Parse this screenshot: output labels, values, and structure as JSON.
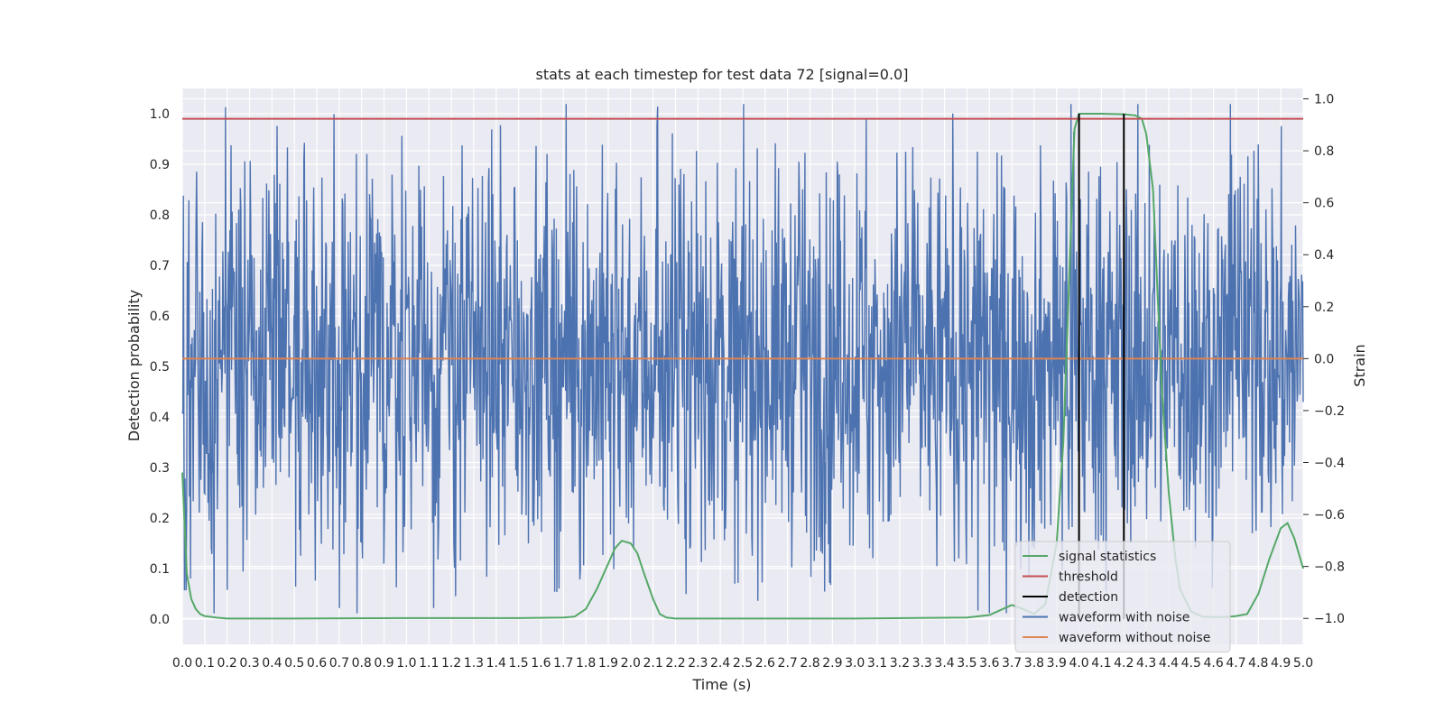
{
  "chart_data": {
    "type": "line",
    "title": "stats at each timestep for test data 72 [signal=0.0]",
    "xlabel": "Time (s)",
    "ylabel": "Detection probability",
    "y2label": "Strain",
    "xlim": [
      0.0,
      5.0
    ],
    "ylim": [
      -0.05,
      1.05
    ],
    "y2lim": [
      -1.1,
      1.04
    ],
    "x_ticks": [
      0.0,
      0.1,
      0.2,
      0.3,
      0.4,
      0.5,
      0.6,
      0.7,
      0.8,
      0.9,
      1.0,
      1.1,
      1.2,
      1.3,
      1.4,
      1.5,
      1.6,
      1.7,
      1.8,
      1.9,
      2.0,
      2.1,
      2.2,
      2.3,
      2.4,
      2.5,
      2.6,
      2.7,
      2.8,
      2.9,
      3.0,
      3.1,
      3.2,
      3.3,
      3.4,
      3.5,
      3.6,
      3.7,
      3.8,
      3.9,
      4.0,
      4.1,
      4.2,
      4.3,
      4.4,
      4.5,
      4.6,
      4.7,
      4.8,
      4.9,
      5.0
    ],
    "x_tick_labels": [
      "0.0",
      "0.1",
      "0.2",
      "0.3",
      "0.4",
      "0.5",
      "0.6",
      "0.7",
      "0.8",
      "0.9",
      "1.0",
      "1.1",
      "1.2",
      "1.3",
      "1.4",
      "1.5",
      "1.6",
      "1.7",
      "1.8",
      "1.9",
      "2.0",
      "2.1",
      "2.2",
      "2.3",
      "2.4",
      "2.5",
      "2.6",
      "2.7",
      "2.8",
      "2.9",
      "3.0",
      "3.1",
      "3.2",
      "3.3",
      "3.4",
      "3.5",
      "3.6",
      "3.7",
      "3.8",
      "3.9",
      "4.0",
      "4.1",
      "4.2",
      "4.3",
      "4.4",
      "4.5",
      "4.6",
      "4.7",
      "4.8",
      "4.9",
      "5.0"
    ],
    "y_ticks": [
      0.0,
      0.1,
      0.2,
      0.3,
      0.4,
      0.5,
      0.6,
      0.7,
      0.8,
      0.9,
      1.0
    ],
    "y_tick_labels": [
      "0.0",
      "0.1",
      "0.2",
      "0.3",
      "0.4",
      "0.5",
      "0.6",
      "0.7",
      "0.8",
      "0.9",
      "1.0"
    ],
    "y2_ticks": [
      -1.0,
      -0.8,
      -0.6,
      -0.4,
      -0.2,
      0.0,
      0.2,
      0.4,
      0.6,
      0.8,
      1.0
    ],
    "y2_tick_labels": [
      "−1.0",
      "−0.8",
      "−0.6",
      "−0.4",
      "−0.2",
      "0.0",
      "0.2",
      "0.4",
      "0.6",
      "0.8",
      "1.0"
    ],
    "grid": true,
    "legend_position": "lower-right",
    "series": [
      {
        "name": "signal statistics",
        "axis": "left",
        "color": "#55a868",
        "x": [
          0.0,
          0.02,
          0.04,
          0.06,
          0.08,
          0.1,
          0.15,
          0.2,
          0.3,
          0.5,
          1.0,
          1.5,
          1.7,
          1.75,
          1.8,
          1.85,
          1.9,
          1.93,
          1.96,
          2.0,
          2.03,
          2.06,
          2.1,
          2.13,
          2.16,
          2.2,
          2.5,
          3.0,
          3.5,
          3.6,
          3.65,
          3.7,
          3.75,
          3.8,
          3.85,
          3.9,
          3.93,
          3.95,
          3.97,
          3.98,
          4.0,
          4.05,
          4.1,
          4.2,
          4.25,
          4.28,
          4.3,
          4.33,
          4.35,
          4.37,
          4.4,
          4.43,
          4.45,
          4.5,
          4.55,
          4.6,
          4.65,
          4.7,
          4.75,
          4.8,
          4.85,
          4.9,
          4.93,
          4.96,
          5.0
        ],
        "y": [
          0.29,
          0.09,
          0.04,
          0.02,
          0.01,
          0.006,
          0.003,
          0.001,
          0.001,
          0.001,
          0.002,
          0.002,
          0.003,
          0.005,
          0.02,
          0.06,
          0.11,
          0.14,
          0.155,
          0.15,
          0.13,
          0.09,
          0.04,
          0.01,
          0.003,
          0.001,
          0.001,
          0.001,
          0.003,
          0.008,
          0.018,
          0.028,
          0.02,
          0.01,
          0.03,
          0.15,
          0.35,
          0.6,
          0.85,
          0.97,
          1.0,
          1.0,
          1.0,
          0.999,
          0.997,
          0.99,
          0.96,
          0.85,
          0.65,
          0.45,
          0.25,
          0.12,
          0.06,
          0.015,
          0.005,
          0.004,
          0.004,
          0.006,
          0.01,
          0.05,
          0.12,
          0.18,
          0.19,
          0.16,
          0.1
        ]
      },
      {
        "name": "threshold",
        "axis": "left",
        "color": "#c44e52",
        "value": 0.99
      },
      {
        "name": "detection",
        "axis": "left",
        "color": "#000000",
        "intervals": [
          [
            4.0,
            4.2
          ]
        ],
        "range": [
          0.0,
          1.0
        ]
      },
      {
        "name": "waveform with noise",
        "axis": "right",
        "color": "#4c72b0",
        "description_stats": {
          "n_points": 2048,
          "typical_abs_max": 0.75
        },
        "notable_peaks": [
          [
            0.03,
            0.61
          ],
          [
            2.12,
            0.97
          ],
          [
            3.05,
            0.92
          ],
          [
            4.72,
            0.7
          ],
          [
            4.78,
            0.8
          ],
          [
            0.2,
            -0.89
          ],
          [
            0.7,
            -0.96
          ],
          [
            1.12,
            -0.96
          ],
          [
            3.55,
            -0.97
          ],
          [
            3.6,
            -0.98
          ]
        ]
      },
      {
        "name": "waveform without noise",
        "axis": "right",
        "color": "#dd8452",
        "value": 0.0
      }
    ],
    "legend": {
      "items": [
        {
          "label": "signal statistics",
          "color": "#55a868"
        },
        {
          "label": "threshold",
          "color": "#c44e52"
        },
        {
          "label": "detection",
          "color": "#000000"
        },
        {
          "label": "waveform with noise",
          "color": "#4c72b0"
        },
        {
          "label": "waveform without noise",
          "color": "#dd8452"
        }
      ]
    }
  }
}
